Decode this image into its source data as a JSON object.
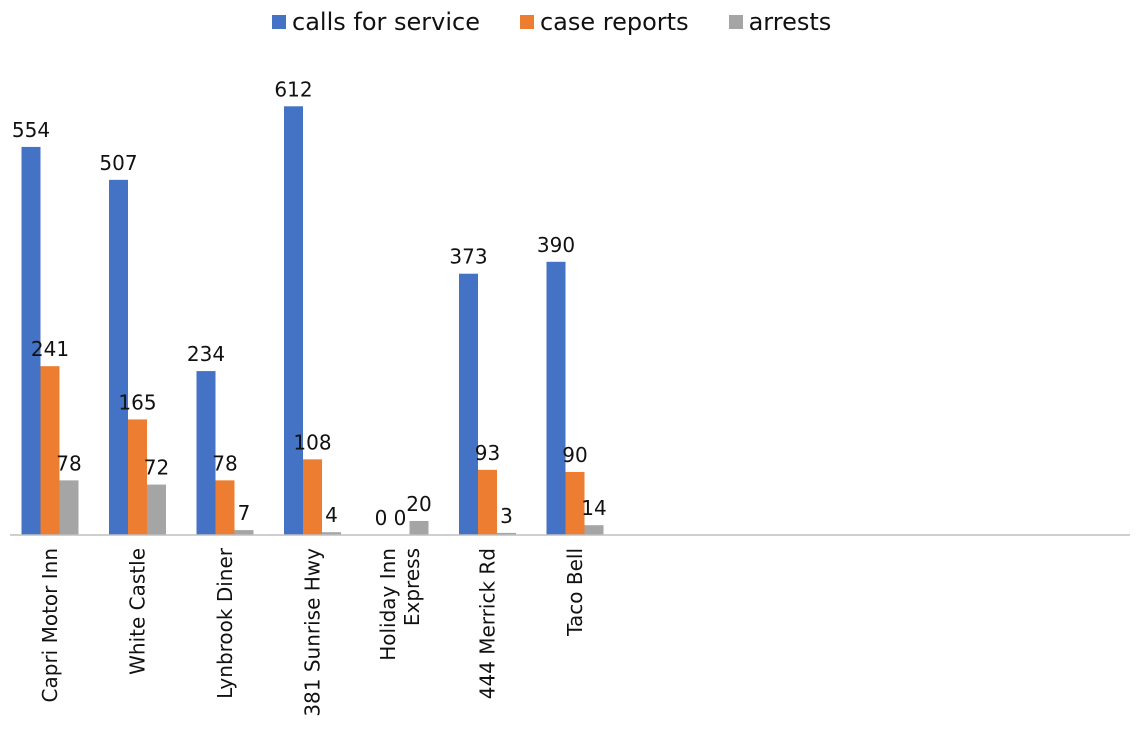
{
  "chart_data": {
    "type": "bar",
    "title": "",
    "xlabel": "",
    "ylabel": "",
    "legend_position": "top",
    "grid": false,
    "ylim": [
      0,
      640
    ],
    "categories": [
      "Capri Motor Inn",
      "White Castle",
      "Lynbrook Diner",
      "381 Sunrise Hwy",
      "Holiday Inn Express",
      "444 Merrick Rd",
      "Taco Bell"
    ],
    "series": [
      {
        "name": "calls for service",
        "color": "#4472c4",
        "values": [
          554,
          507,
          234,
          612,
          0,
          373,
          390
        ]
      },
      {
        "name": "case reports",
        "color": "#ed7d31",
        "values": [
          241,
          165,
          78,
          108,
          0,
          93,
          90
        ]
      },
      {
        "name": "arrests",
        "color": "#a5a5a5",
        "values": [
          78,
          72,
          7,
          4,
          20,
          3,
          14
        ]
      }
    ]
  }
}
